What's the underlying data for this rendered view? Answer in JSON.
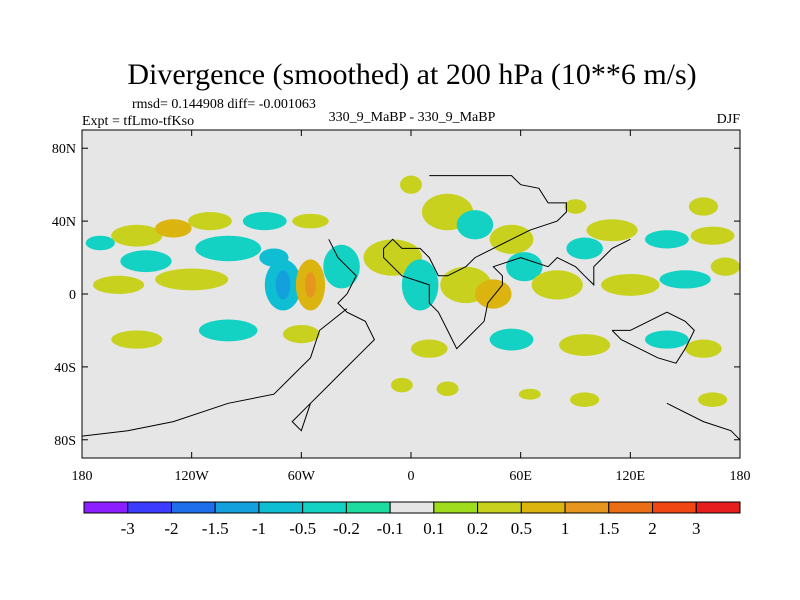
{
  "chart_data": {
    "type": "filled_contour_map",
    "title": "Divergence (smoothed) at 200 hPa (10**6 m/s)",
    "rmsd_label": "rmsd= 0.144908 diff= -0.001063",
    "left_label": "Expt = tfLmo-tfKso",
    "center_label": "330_9_MaBP - 330_9_MaBP",
    "right_label": "DJF",
    "xlim": [
      -180,
      180
    ],
    "ylim": [
      -90,
      90
    ],
    "x_ticks": [
      {
        "value": -180,
        "label": "180"
      },
      {
        "value": -120,
        "label": "120W"
      },
      {
        "value": -60,
        "label": "60W"
      },
      {
        "value": 0,
        "label": "0"
      },
      {
        "value": 60,
        "label": "60E"
      },
      {
        "value": 120,
        "label": "120E"
      },
      {
        "value": 180,
        "label": "180"
      }
    ],
    "y_ticks": [
      {
        "value": 80,
        "label": "80N"
      },
      {
        "value": 40,
        "label": "40N"
      },
      {
        "value": 0,
        "label": "0"
      },
      {
        "value": -40,
        "label": "40S"
      },
      {
        "value": -80,
        "label": "80S"
      }
    ],
    "colorbar": {
      "levels": [
        "-3",
        "-2",
        "-1.5",
        "-1",
        "-0.5",
        "-0.2",
        "-0.1",
        "0.1",
        "0.2",
        "0.5",
        "1",
        "1.5",
        "2",
        "3"
      ],
      "colors": [
        "#8c1eff",
        "#3c3cff",
        "#1e6eeb",
        "#14a0dc",
        "#0fbed2",
        "#14d2c3",
        "#1edca0",
        "#e6e6e6",
        "#a0dc1e",
        "#c8d21e",
        "#dcb40f",
        "#e6961e",
        "#eb6e14",
        "#f04614",
        "#e61e1e"
      ]
    },
    "fields": [
      {
        "lon": -150,
        "lat": 32,
        "rx": 14,
        "ry": 6,
        "value": 0.3
      },
      {
        "lon": -130,
        "lat": 36,
        "rx": 10,
        "ry": 5,
        "value": 0.6
      },
      {
        "lon": -110,
        "lat": 40,
        "rx": 12,
        "ry": 5,
        "value": 0.3
      },
      {
        "lon": -80,
        "lat": 40,
        "rx": 12,
        "ry": 5,
        "value": -0.3
      },
      {
        "lon": -55,
        "lat": 40,
        "rx": 10,
        "ry": 4,
        "value": 0.3
      },
      {
        "lon": -170,
        "lat": 28,
        "rx": 8,
        "ry": 4,
        "value": -0.3
      },
      {
        "lon": -145,
        "lat": 18,
        "rx": 14,
        "ry": 6,
        "value": -0.3
      },
      {
        "lon": -100,
        "lat": 25,
        "rx": 18,
        "ry": 7,
        "value": -0.3
      },
      {
        "lon": -75,
        "lat": 20,
        "rx": 8,
        "ry": 5,
        "value": -0.6
      },
      {
        "lon": -160,
        "lat": 5,
        "rx": 14,
        "ry": 5,
        "value": 0.3
      },
      {
        "lon": -120,
        "lat": 8,
        "rx": 20,
        "ry": 6,
        "value": 0.3
      },
      {
        "lon": -70,
        "lat": 5,
        "rx": 10,
        "ry": 14,
        "value": -0.6
      },
      {
        "lon": -70,
        "lat": 5,
        "rx": 4,
        "ry": 8,
        "value": -1.2
      },
      {
        "lon": -55,
        "lat": 5,
        "rx": 8,
        "ry": 14,
        "value": 0.6
      },
      {
        "lon": -55,
        "lat": 5,
        "rx": 3,
        "ry": 7,
        "value": 1.2
      },
      {
        "lon": -38,
        "lat": 15,
        "rx": 10,
        "ry": 12,
        "value": -0.3
      },
      {
        "lon": -10,
        "lat": 20,
        "rx": 16,
        "ry": 10,
        "value": 0.3
      },
      {
        "lon": 5,
        "lat": 5,
        "rx": 10,
        "ry": 14,
        "value": -0.3
      },
      {
        "lon": 20,
        "lat": 45,
        "rx": 14,
        "ry": 10,
        "value": 0.3
      },
      {
        "lon": 35,
        "lat": 38,
        "rx": 10,
        "ry": 8,
        "value": -0.3
      },
      {
        "lon": 55,
        "lat": 30,
        "rx": 12,
        "ry": 8,
        "value": 0.3
      },
      {
        "lon": 30,
        "lat": 5,
        "rx": 14,
        "ry": 10,
        "value": 0.3
      },
      {
        "lon": 45,
        "lat": 0,
        "rx": 10,
        "ry": 8,
        "value": 0.6
      },
      {
        "lon": 62,
        "lat": 15,
        "rx": 10,
        "ry": 8,
        "value": -0.3
      },
      {
        "lon": 80,
        "lat": 5,
        "rx": 14,
        "ry": 8,
        "value": 0.3
      },
      {
        "lon": 95,
        "lat": 25,
        "rx": 10,
        "ry": 6,
        "value": -0.3
      },
      {
        "lon": 110,
        "lat": 35,
        "rx": 14,
        "ry": 6,
        "value": 0.3
      },
      {
        "lon": 140,
        "lat": 30,
        "rx": 12,
        "ry": 5,
        "value": -0.3
      },
      {
        "lon": 165,
        "lat": 32,
        "rx": 12,
        "ry": 5,
        "value": 0.3
      },
      {
        "lon": 120,
        "lat": 5,
        "rx": 16,
        "ry": 6,
        "value": 0.3
      },
      {
        "lon": 150,
        "lat": 8,
        "rx": 14,
        "ry": 5,
        "value": -0.3
      },
      {
        "lon": 172,
        "lat": 15,
        "rx": 8,
        "ry": 5,
        "value": 0.3
      },
      {
        "lon": -150,
        "lat": -25,
        "rx": 14,
        "ry": 5,
        "value": 0.3
      },
      {
        "lon": -100,
        "lat": -20,
        "rx": 16,
        "ry": 6,
        "value": -0.3
      },
      {
        "lon": -60,
        "lat": -22,
        "rx": 10,
        "ry": 5,
        "value": 0.3
      },
      {
        "lon": 10,
        "lat": -30,
        "rx": 10,
        "ry": 5,
        "value": 0.3
      },
      {
        "lon": 55,
        "lat": -25,
        "rx": 12,
        "ry": 6,
        "value": -0.3
      },
      {
        "lon": 95,
        "lat": -28,
        "rx": 14,
        "ry": 6,
        "value": 0.3
      },
      {
        "lon": 140,
        "lat": -25,
        "rx": 12,
        "ry": 5,
        "value": -0.3
      },
      {
        "lon": 160,
        "lat": -30,
        "rx": 10,
        "ry": 5,
        "value": 0.3
      },
      {
        "lon": 20,
        "lat": -52,
        "rx": 6,
        "ry": 4,
        "value": 0.3
      },
      {
        "lon": 65,
        "lat": -55,
        "rx": 6,
        "ry": 3,
        "value": 0.3
      },
      {
        "lon": 95,
        "lat": -58,
        "rx": 8,
        "ry": 4,
        "value": 0.3
      },
      {
        "lon": 165,
        "lat": -58,
        "rx": 8,
        "ry": 4,
        "value": 0.3
      },
      {
        "lon": -5,
        "lat": -50,
        "rx": 6,
        "ry": 4,
        "value": 0.3
      },
      {
        "lon": 0,
        "lat": 60,
        "rx": 6,
        "ry": 5,
        "value": 0.3
      },
      {
        "lon": 90,
        "lat": 48,
        "rx": 6,
        "ry": 4,
        "value": 0.3
      },
      {
        "lon": 160,
        "lat": 48,
        "rx": 8,
        "ry": 5,
        "value": 0.3
      }
    ],
    "coastlines": [
      [
        [
          10,
          65
        ],
        [
          55,
          65
        ],
        [
          60,
          60
        ],
        [
          70,
          58
        ],
        [
          75,
          50
        ],
        [
          85,
          50
        ],
        [
          85,
          45
        ],
        [
          80,
          40
        ],
        [
          65,
          35
        ],
        [
          55,
          30
        ],
        [
          45,
          25
        ],
        [
          35,
          20
        ],
        [
          30,
          15
        ],
        [
          20,
          10
        ],
        [
          15,
          10
        ],
        [
          10,
          20
        ],
        [
          5,
          25
        ],
        [
          -5,
          25
        ],
        [
          -10,
          30
        ],
        [
          -15,
          25
        ],
        [
          -15,
          20
        ],
        [
          -5,
          10
        ],
        [
          10,
          5
        ],
        [
          10,
          -5
        ],
        [
          15,
          -10
        ],
        [
          20,
          -20
        ],
        [
          25,
          -30
        ],
        [
          30,
          -25
        ],
        [
          40,
          -15
        ],
        [
          42,
          -5
        ],
        [
          50,
          5
        ],
        [
          50,
          10
        ],
        [
          45,
          15
        ],
        [
          60,
          20
        ],
        [
          75,
          15
        ],
        [
          80,
          20
        ],
        [
          90,
          15
        ],
        [
          95,
          10
        ],
        [
          100,
          5
        ],
        [
          100,
          15
        ],
        [
          105,
          20
        ],
        [
          110,
          25
        ],
        [
          120,
          30
        ]
      ],
      [
        [
          -45,
          30
        ],
        [
          -40,
          20
        ],
        [
          -30,
          10
        ],
        [
          -35,
          0
        ],
        [
          -40,
          -5
        ],
        [
          -35,
          -10
        ],
        [
          -25,
          -15
        ],
        [
          -20,
          -25
        ],
        [
          -25,
          -30
        ],
        [
          -35,
          -40
        ],
        [
          -45,
          -50
        ],
        [
          -55,
          -60
        ],
        [
          -65,
          -70
        ],
        [
          -60,
          -75
        ],
        [
          -55,
          -60
        ]
      ],
      [
        [
          -35,
          -8
        ],
        [
          -50,
          -20
        ],
        [
          -55,
          -35
        ],
        [
          -65,
          -45
        ],
        [
          -75,
          -55
        ],
        [
          -100,
          -60
        ],
        [
          -130,
          -70
        ],
        [
          -155,
          -75
        ],
        [
          -180,
          -78
        ]
      ],
      [
        [
          110,
          -20
        ],
        [
          115,
          -25
        ],
        [
          125,
          -30
        ],
        [
          135,
          -35
        ],
        [
          145,
          -38
        ],
        [
          150,
          -30
        ],
        [
          155,
          -20
        ],
        [
          150,
          -15
        ],
        [
          140,
          -10
        ],
        [
          130,
          -15
        ],
        [
          120,
          -20
        ],
        [
          110,
          -20
        ]
      ],
      [
        [
          140,
          -60
        ],
        [
          160,
          -70
        ],
        [
          175,
          -75
        ],
        [
          180,
          -80
        ]
      ]
    ]
  }
}
